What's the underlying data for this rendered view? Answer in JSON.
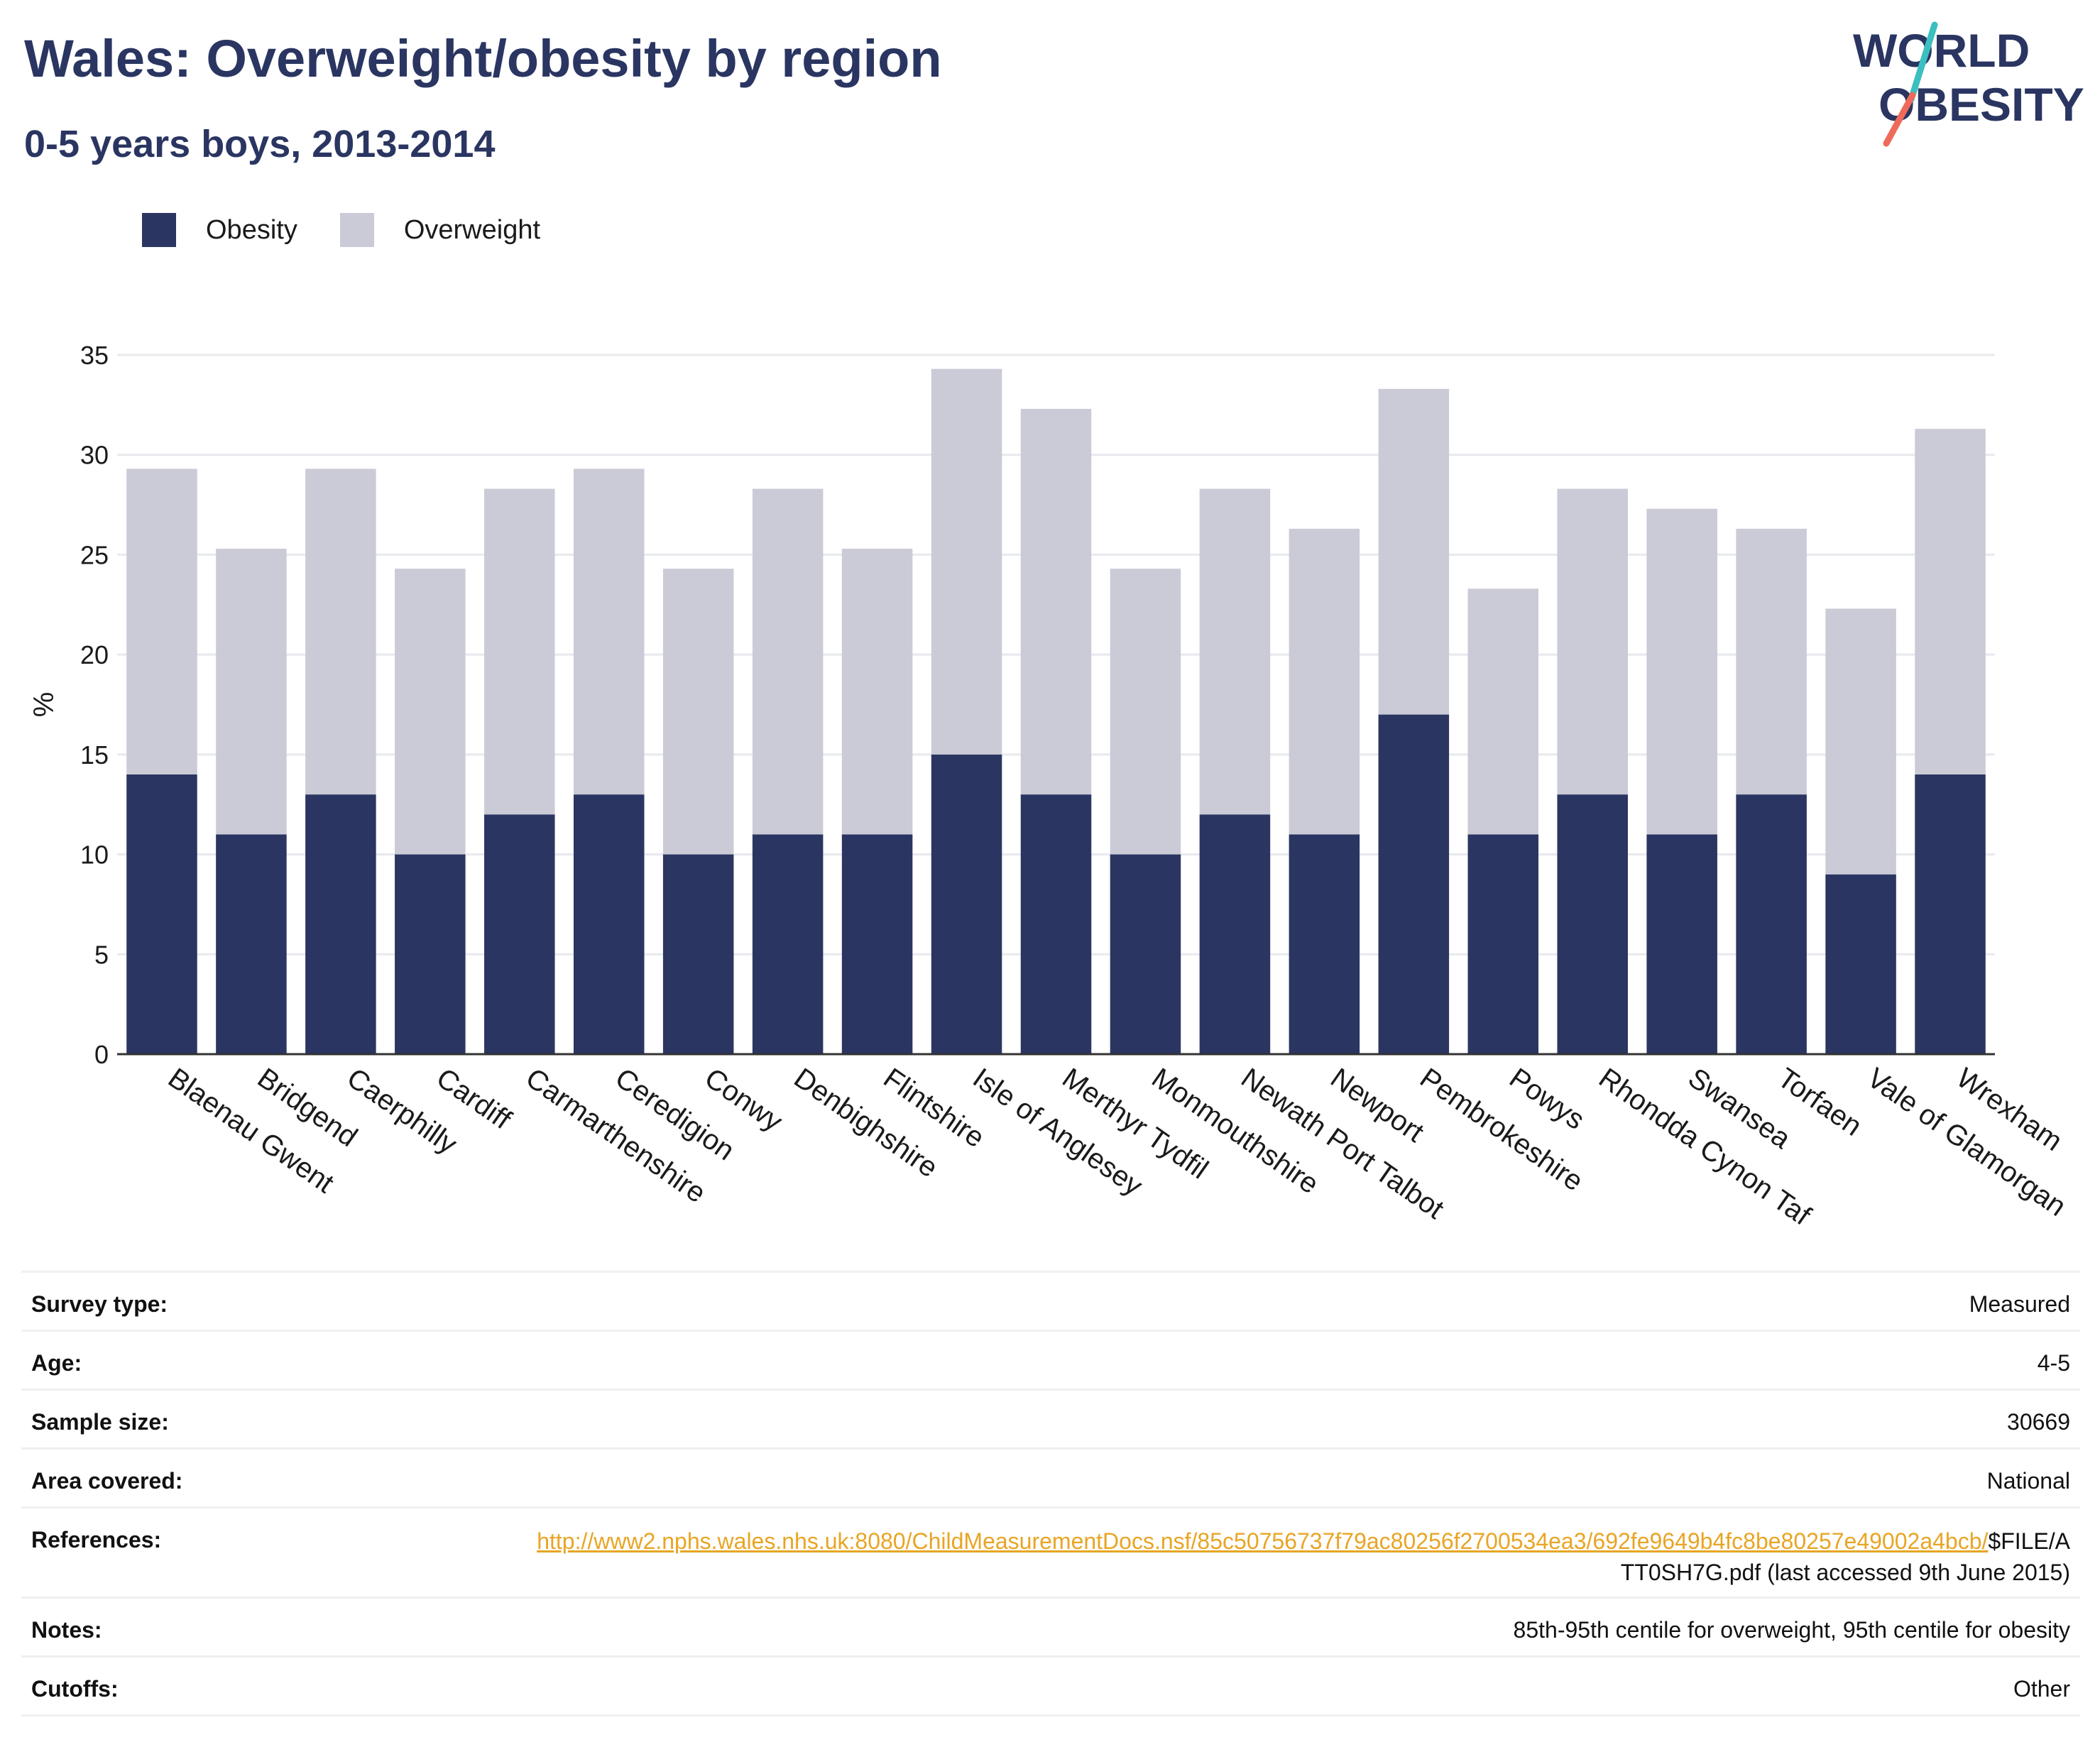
{
  "header": {
    "title": "Wales: Overweight/obesity by region",
    "subtitle": "0-5 years boys, 2013-2014"
  },
  "logo": {
    "line1": "WORLD",
    "line2": "OBESITY",
    "colors": {
      "text": "#2a3561",
      "slash_teal": "#3bbfc0",
      "slash_coral": "#ee6a5a"
    }
  },
  "legend": {
    "items": [
      {
        "label": "Obesity",
        "color": "#2b3562"
      },
      {
        "label": "Overweight",
        "color": "#cacbd7"
      }
    ]
  },
  "chart_data": {
    "type": "bar",
    "stacked": true,
    "categories": [
      "Blaenau Gwent",
      "Bridgend",
      "Caerphilly",
      "Cardiff",
      "Carmarthenshire",
      "Ceredigion",
      "Conwy",
      "Denbighshire",
      "Flintshire",
      "Isle of Anglesey",
      "Merthyr Tydfil",
      "Monmouthshire",
      "Newath Port Talbot",
      "Newport",
      "Pembrokeshire",
      "Powys",
      "Rhondda Cynon Taf",
      "Swansea",
      "Torfaen",
      "Vale of Glamorgan",
      "Wrexham"
    ],
    "series": [
      {
        "name": "Obesity",
        "color": "#2b3562",
        "values": [
          14,
          11,
          13,
          10,
          12,
          13,
          10,
          11,
          11,
          15,
          13,
          10,
          12,
          11,
          17,
          11,
          13,
          11,
          13,
          9,
          14
        ]
      },
      {
        "name": "Overweight",
        "color": "#cacbd7",
        "values": [
          15.3,
          14.3,
          16.3,
          14.3,
          16.3,
          16.3,
          14.3,
          17.3,
          14.3,
          19.3,
          19.3,
          14.3,
          16.3,
          15.3,
          16.3,
          12.3,
          15.3,
          16.3,
          13.3,
          13.3,
          17.3
        ]
      }
    ],
    "ylabel": "%",
    "xlabel": "",
    "ylim": [
      0,
      35
    ],
    "yticks": [
      0,
      5,
      10,
      15,
      20,
      25,
      30,
      35
    ],
    "grid": true,
    "legend_position": "top-left"
  },
  "info": {
    "rows": [
      {
        "label": "Survey type:",
        "value": "Measured"
      },
      {
        "label": "Age:",
        "value": "4-5"
      },
      {
        "label": "Sample size:",
        "value": "30669"
      },
      {
        "label": "Area covered:",
        "value": "National"
      },
      {
        "label": "References:",
        "link": "http://www2.nphs.wales.nhs.uk:8080/ChildMeasurementDocs.nsf/85c50756737f79ac80256f2700534ea3/692fe9649b4fc8be80257e49002a4bcb/",
        "value": "$FILE/ATT0SH7G.pdf (last accessed 9th June 2015)"
      },
      {
        "label": "Notes:",
        "value": "85th-95th centile for overweight, 95th centile for obesity"
      },
      {
        "label": "Cutoffs:",
        "value": "Other"
      }
    ]
  }
}
